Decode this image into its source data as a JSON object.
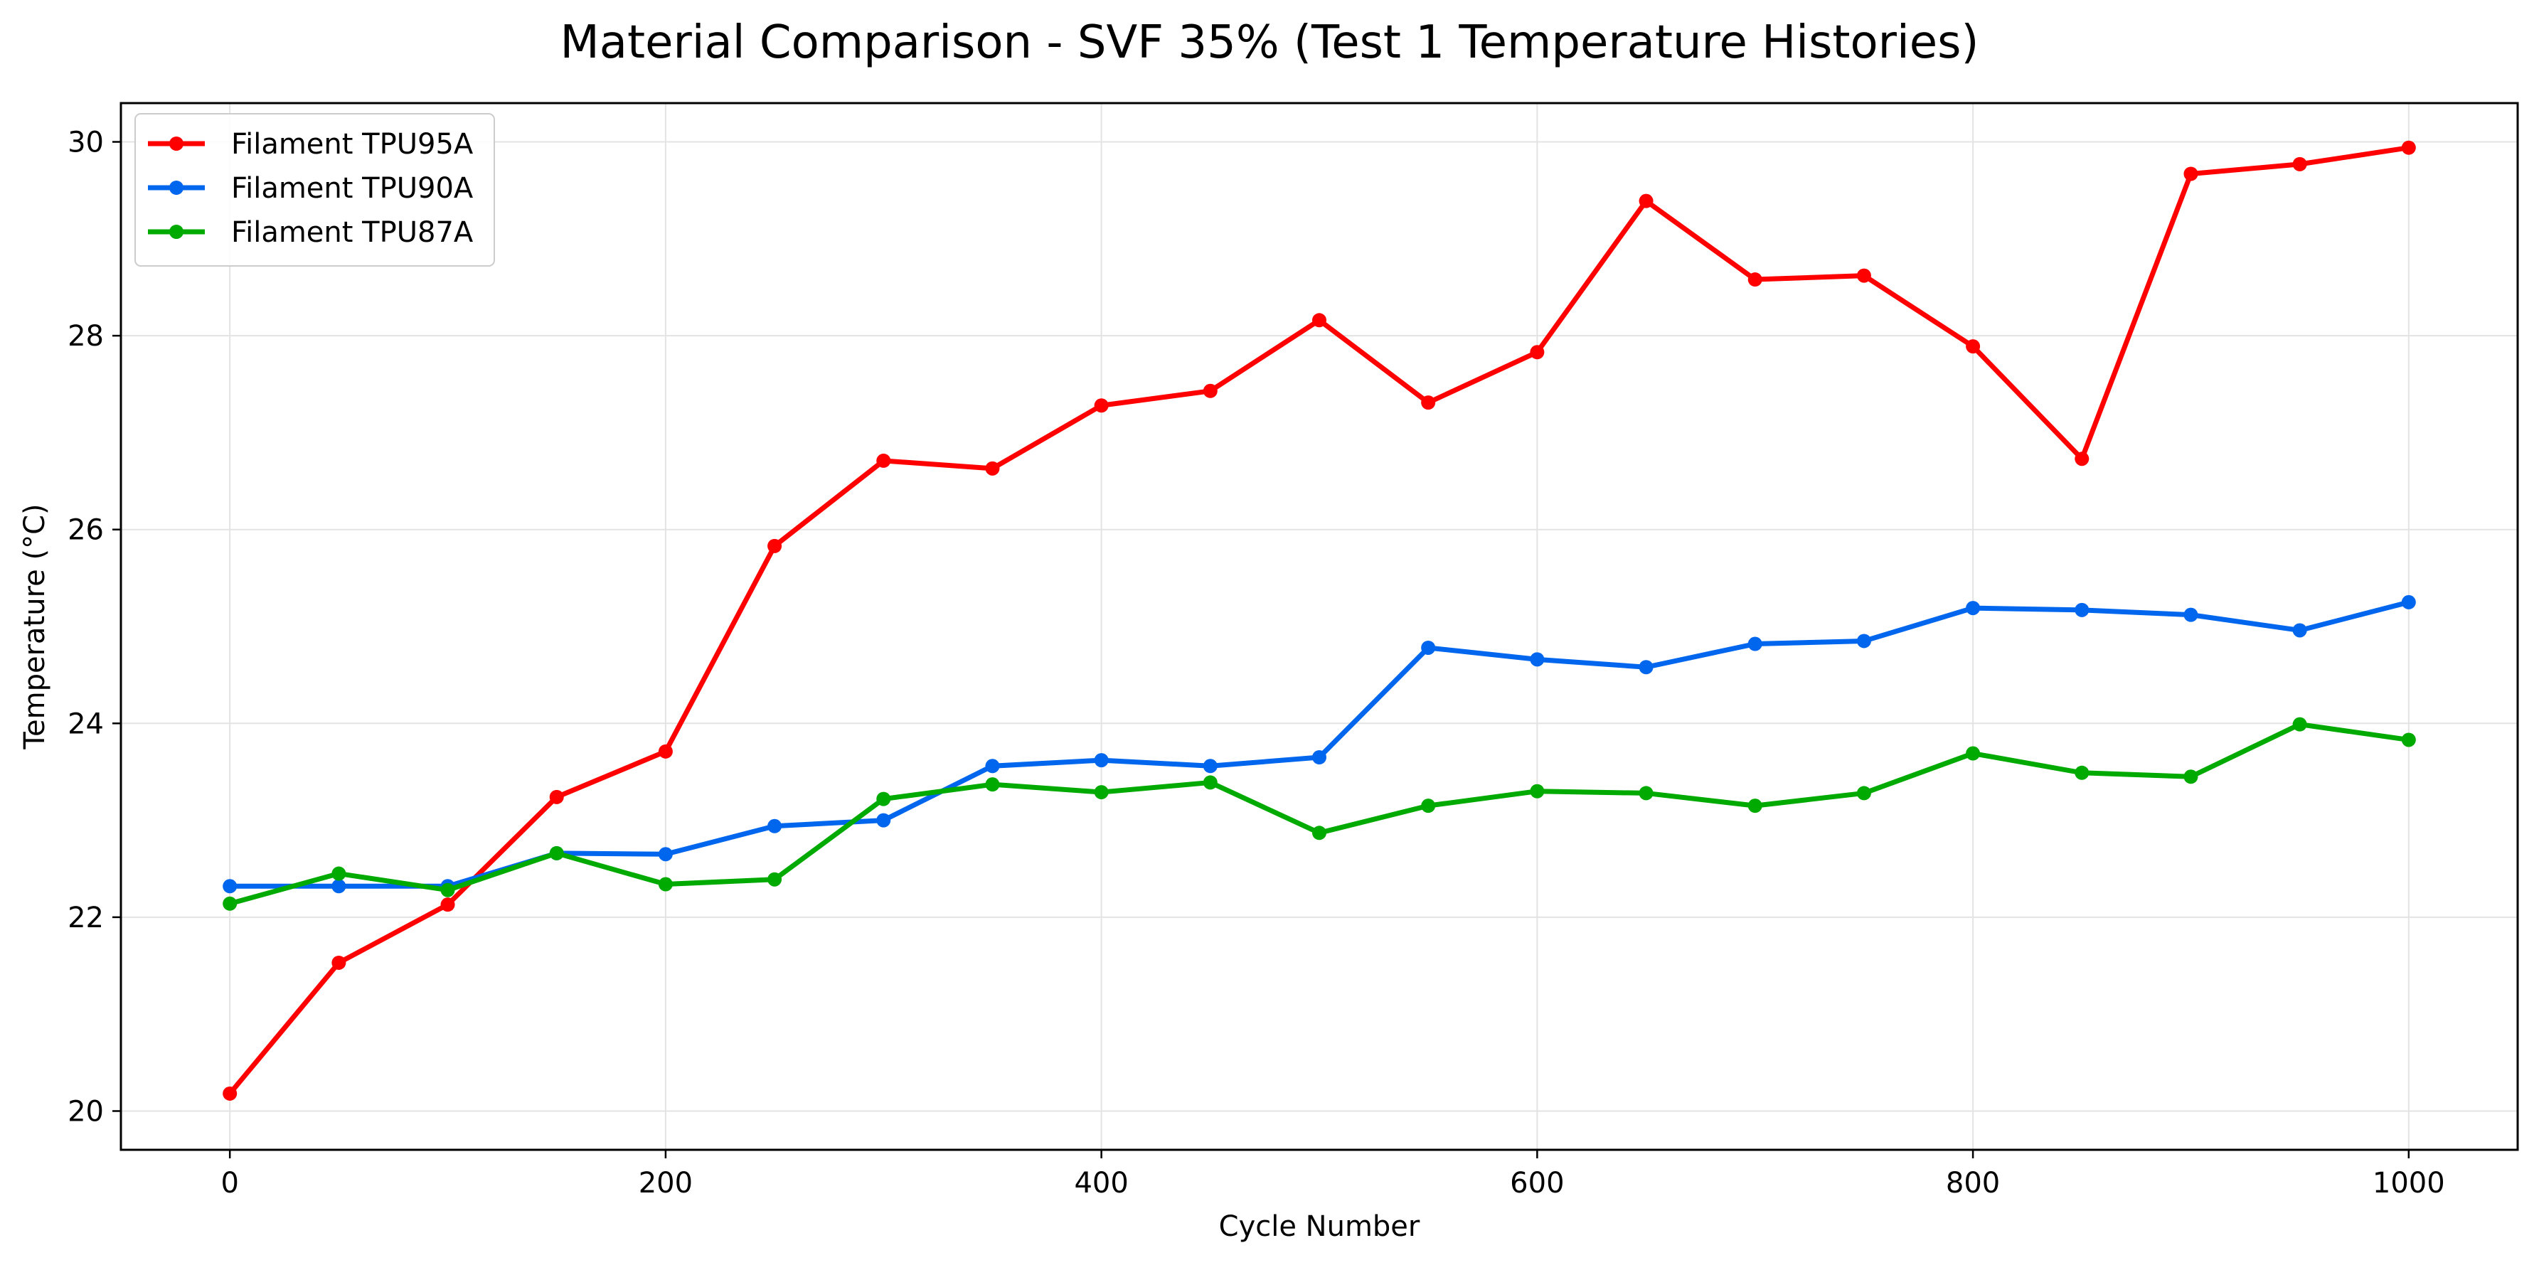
{
  "chart_data": {
    "type": "line",
    "title": "Material Comparison - SVF 35% (Test 1 Temperature Histories)",
    "xlabel": "Cycle Number",
    "ylabel": "Temperature (°C)",
    "xlim": [
      -50,
      1050
    ],
    "ylim": [
      19.6,
      30.4
    ],
    "xticks": [
      0,
      200,
      400,
      600,
      800,
      1000
    ],
    "yticks": [
      20,
      22,
      24,
      26,
      28,
      30
    ],
    "grid": true,
    "legend_position": "upper-left",
    "x": [
      0,
      50,
      100,
      150,
      200,
      250,
      300,
      350,
      400,
      450,
      500,
      550,
      600,
      650,
      700,
      750,
      800,
      850,
      900,
      950,
      1000
    ],
    "series": [
      {
        "name": "Filament TPU95A",
        "color": "#ff0000",
        "values": [
          20.18,
          21.53,
          22.13,
          23.24,
          23.71,
          25.83,
          26.71,
          26.63,
          27.28,
          27.43,
          28.16,
          27.31,
          27.83,
          29.39,
          28.58,
          28.62,
          27.89,
          26.73,
          29.67,
          29.77,
          29.94
        ]
      },
      {
        "name": "Filament TPU90A",
        "color": "#0066ee",
        "values": [
          22.32,
          22.32,
          22.32,
          22.66,
          22.65,
          22.94,
          23.0,
          23.56,
          23.62,
          23.56,
          23.65,
          24.78,
          24.66,
          24.58,
          24.82,
          24.85,
          25.19,
          25.17,
          25.12,
          24.96,
          25.25
        ]
      },
      {
        "name": "Filament TPU87A",
        "color": "#00aa00",
        "values": [
          22.14,
          22.45,
          22.28,
          22.66,
          22.34,
          22.39,
          23.22,
          23.37,
          23.29,
          23.39,
          22.87,
          23.15,
          23.3,
          23.28,
          23.15,
          23.28,
          23.69,
          23.49,
          23.45,
          23.99,
          23.83
        ]
      }
    ]
  }
}
